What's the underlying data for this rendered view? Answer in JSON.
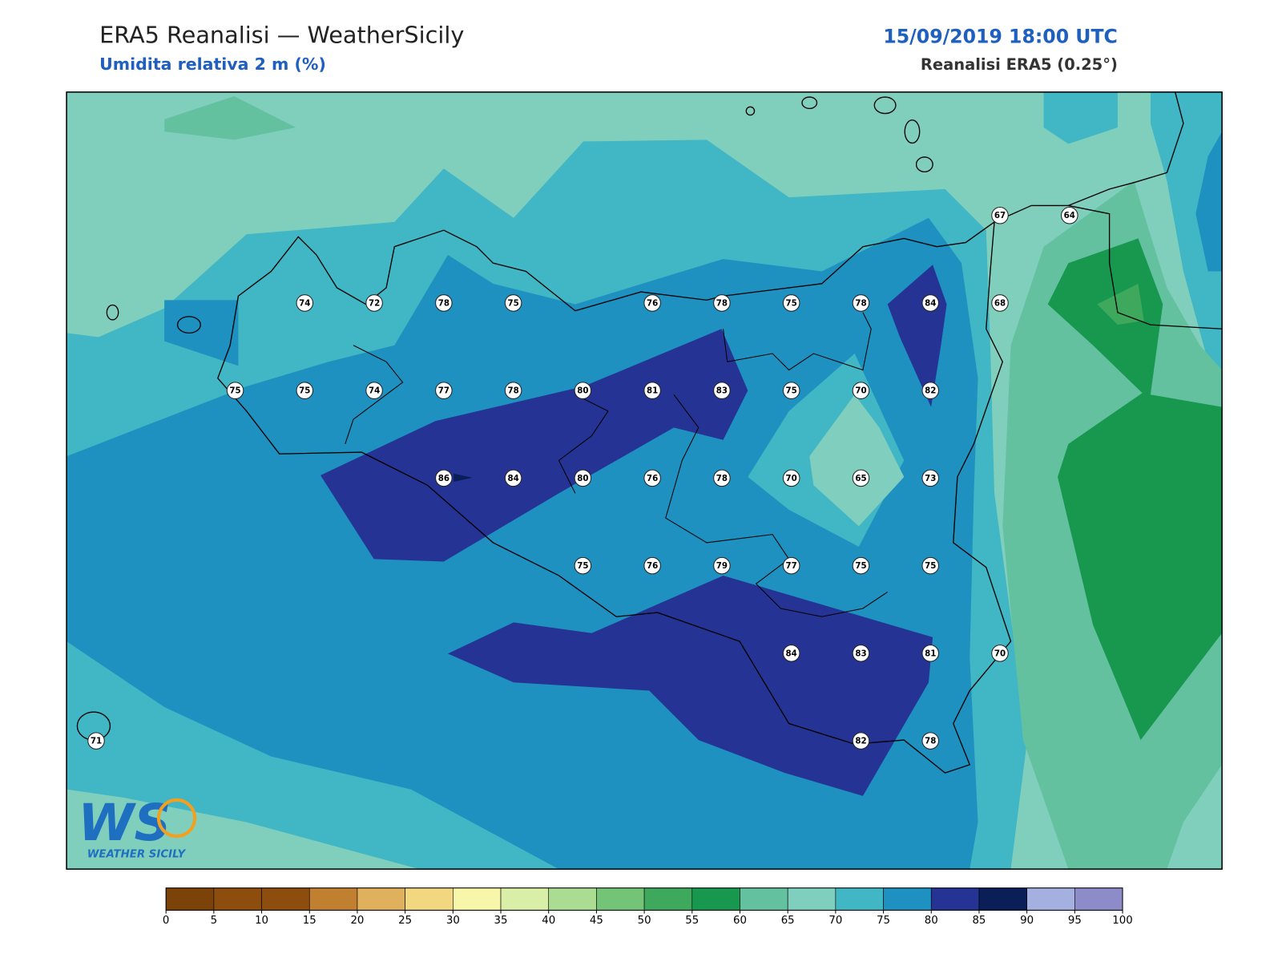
{
  "header": {
    "title": "ERA5 Reanalisi — WeatherSicily",
    "subtitle": "Umidita relativa 2 m (%)",
    "datetime": "15/09/2019 18:00 UTC",
    "source": "Reanalisi ERA5 (0.25°)"
  },
  "station_grid": [
    [
      null,
      null,
      null,
      null,
      null,
      null,
      null,
      null,
      null,
      null,
      null,
      null,
      null,
      67,
      64
    ],
    [
      null,
      null,
      null,
      74,
      72,
      78,
      75,
      null,
      76,
      78,
      75,
      78,
      84,
      68,
      null
    ],
    [
      null,
      null,
      75,
      75,
      74,
      77,
      78,
      80,
      81,
      83,
      75,
      70,
      82,
      null,
      null
    ],
    [
      null,
      null,
      null,
      null,
      null,
      86,
      84,
      80,
      76,
      78,
      70,
      65,
      73,
      null,
      null
    ],
    [
      null,
      null,
      null,
      null,
      null,
      null,
      null,
      75,
      76,
      79,
      77,
      75,
      75,
      null,
      null
    ],
    [
      null,
      null,
      null,
      null,
      null,
      null,
      null,
      null,
      null,
      null,
      84,
      83,
      81,
      70,
      null
    ],
    [
      71,
      null,
      null,
      null,
      null,
      null,
      null,
      null,
      null,
      null,
      null,
      82,
      78,
      null,
      null
    ]
  ],
  "colorbar": {
    "ticks": [
      0,
      5,
      10,
      15,
      20,
      25,
      30,
      35,
      40,
      45,
      50,
      55,
      60,
      65,
      70,
      75,
      80,
      85,
      90,
      95,
      100
    ],
    "colors": [
      "#7b4309",
      "#8c4d0e",
      "#8c4d0e",
      "#c08030",
      "#dfb15c",
      "#f1d77f",
      "#f7f6aa",
      "#d9eea6",
      "#aadc92",
      "#74c477",
      "#3ea95c",
      "#18974f",
      "#64c1a0",
      "#80cfbe",
      "#41b6c4",
      "#1e91c0",
      "#253494",
      "#0a1e58",
      "#a4b0e0",
      "#8d8cc9"
    ]
  },
  "logo": {
    "mark": "WS",
    "name": "WEATHER SICILY"
  }
}
